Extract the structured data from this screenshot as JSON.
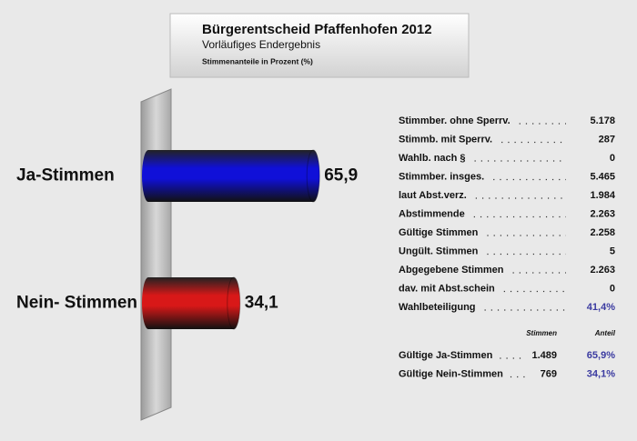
{
  "chart_data": {
    "type": "bar",
    "orientation": "horizontal",
    "title": "Bürgerentscheid Pfaffenhofen 2012",
    "subtitle": "Vorläufiges Endergebnis",
    "note": "Stimmenanteile in Prozent (%)",
    "categories": [
      "Ja-Stimmen",
      "Nein- Stimmen"
    ],
    "values": [
      65.9,
      34.1
    ],
    "value_labels": [
      "65,9",
      "34,1"
    ],
    "colors": [
      "#1010d8",
      "#d81818"
    ]
  },
  "stats": {
    "rows": [
      {
        "label": "Stimmber. ohne Sperrv.",
        "value": "5.178"
      },
      {
        "label": "Stimmb. mit Sperrv.",
        "value": "287"
      },
      {
        "label": "Wahlb. nach §",
        "value": "0"
      },
      {
        "label": "Stimmber. insges.",
        "value": "5.465"
      },
      {
        "label": "laut  Abst.verz.",
        "value": "1.984"
      },
      {
        "label": "Abstimmende",
        "value": "2.263"
      },
      {
        "label": "Gültige Stimmen",
        "value": "2.258"
      },
      {
        "label": "Ungült. Stimmen",
        "value": "5"
      },
      {
        "label": "Abgegebene Stimmen",
        "value": "2.263"
      },
      {
        "label": "dav. mit Abst.schein",
        "value": "0"
      },
      {
        "label": "Wahlbeteiligung",
        "value": "41,4%"
      }
    ],
    "columns": [
      "Stimmen",
      "Anteil"
    ],
    "results": [
      {
        "label": "Gültige Ja-Stimmen",
        "votes": "1.489",
        "share": "65,9%"
      },
      {
        "label": "Gültige Nein-Stimmen",
        "votes": "769",
        "share": "34,1%"
      }
    ]
  }
}
